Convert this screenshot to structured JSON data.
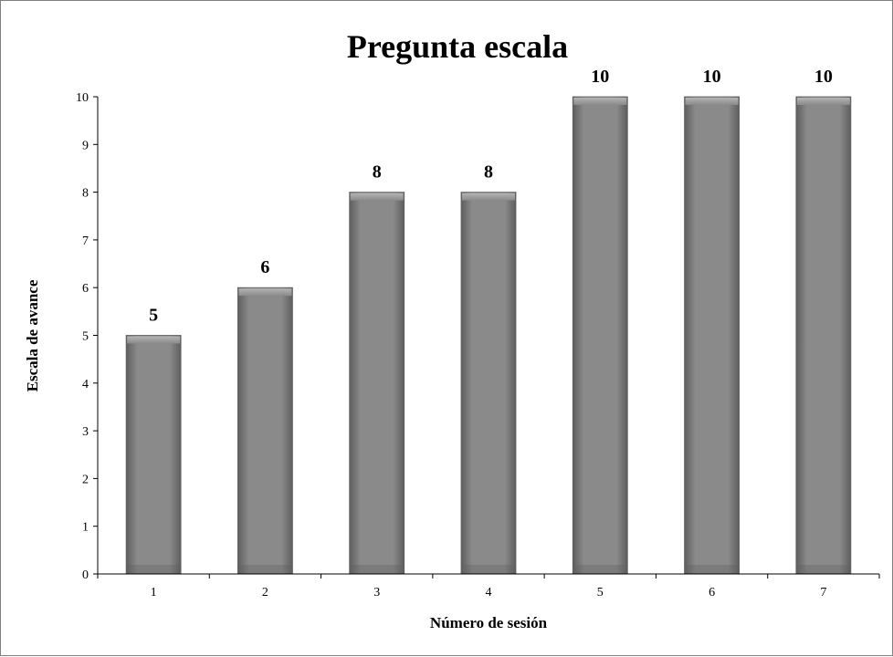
{
  "chart_data": {
    "type": "bar",
    "title": "Pregunta escala",
    "xlabel": "Número de sesión",
    "ylabel": "Escala de avance",
    "categories": [
      "1",
      "2",
      "3",
      "4",
      "5",
      "6",
      "7"
    ],
    "values": [
      5,
      6,
      8,
      8,
      10,
      10,
      10
    ],
    "data_labels": [
      "5",
      "6",
      "8",
      "8",
      "10",
      "10",
      "10"
    ],
    "yticks": [
      "0",
      "1",
      "2",
      "3",
      "4",
      "5",
      "6",
      "7",
      "8",
      "9",
      "10"
    ],
    "ylim": [
      0,
      10
    ],
    "grid": false,
    "legend": "none",
    "colors": {
      "bar": "#8a8a8a",
      "bar_dark": "#5e5e5e",
      "bar_light": "#b4b4b4",
      "axis": "#000000",
      "text": "#000000",
      "border": "#808080"
    }
  }
}
